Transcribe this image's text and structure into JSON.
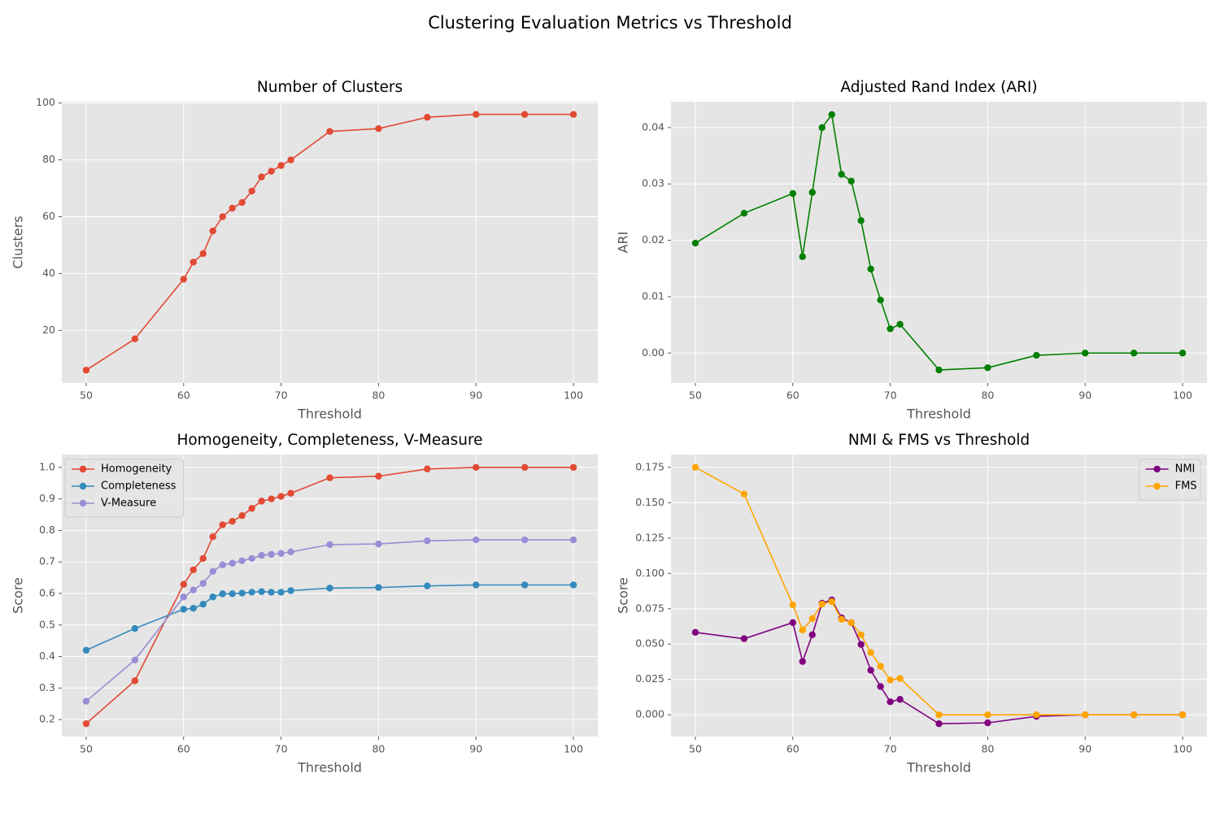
{
  "title": "Clustering Evaluation Metrics vs Threshold",
  "chart_data": [
    {
      "type": "line",
      "title": "Number of Clusters",
      "xlabel": "Threshold",
      "ylabel": "Clusters",
      "x": [
        50,
        55,
        60,
        61,
        62,
        63,
        64,
        65,
        66,
        67,
        68,
        69,
        70,
        71,
        75,
        80,
        85,
        90,
        95,
        100
      ],
      "values": [
        6,
        17,
        38,
        44,
        47,
        55,
        60,
        63,
        65,
        69,
        74,
        76,
        78,
        80,
        90,
        91,
        95,
        96,
        96,
        96
      ],
      "color": "#E24A33",
      "xlim": [
        47.5,
        102.5
      ],
      "xticks": [
        50,
        60,
        70,
        80,
        90,
        100
      ],
      "ylim": [
        1.5,
        100.5
      ],
      "yticks": [
        20,
        40,
        60,
        80,
        100
      ],
      "grid": true
    },
    {
      "type": "line",
      "title": "Adjusted Rand Index (ARI)",
      "xlabel": "Threshold",
      "ylabel": "ARI",
      "x": [
        50,
        55,
        60,
        61,
        62,
        63,
        64,
        65,
        66,
        67,
        68,
        69,
        70,
        71,
        75,
        80,
        85,
        90,
        95,
        100
      ],
      "values": [
        0.0195,
        0.0248,
        0.0283,
        0.0171,
        0.0285,
        0.04,
        0.0423,
        0.0317,
        0.0305,
        0.0235,
        0.0149,
        0.0094,
        0.0043,
        0.0051,
        -0.003,
        -0.0026,
        -0.0004,
        0,
        0,
        0
      ],
      "color": "#008000",
      "xlim": [
        47.5,
        102.5
      ],
      "xticks": [
        50,
        60,
        70,
        80,
        90,
        100
      ],
      "ylim": [
        -0.0053,
        0.0446
      ],
      "yticks": [
        {
          "value": 0,
          "label": "0.00"
        },
        {
          "value": 0.01,
          "label": "0.01"
        },
        {
          "value": 0.02,
          "label": "0.02"
        },
        {
          "value": 0.03,
          "label": "0.03"
        },
        {
          "value": 0.04,
          "label": "0.04"
        }
      ],
      "grid": true
    },
    {
      "type": "line",
      "title": "Homogeneity, Completeness, V-Measure",
      "xlabel": "Threshold",
      "ylabel": "Score",
      "x": [
        50,
        55,
        60,
        61,
        62,
        63,
        64,
        65,
        66,
        67,
        68,
        69,
        70,
        71,
        75,
        80,
        85,
        90,
        95,
        100
      ],
      "series": [
        {
          "name": "Homogeneity",
          "color": "#E24A33",
          "values": [
            0.187,
            0.323,
            0.629,
            0.675,
            0.711,
            0.78,
            0.818,
            0.829,
            0.847,
            0.87,
            0.893,
            0.9,
            0.908,
            0.918,
            0.967,
            0.972,
            0.995,
            1.0,
            1.0,
            1.0
          ]
        },
        {
          "name": "Completeness",
          "color": "#348ABD",
          "values": [
            0.42,
            0.489,
            0.55,
            0.553,
            0.566,
            0.589,
            0.599,
            0.599,
            0.601,
            0.604,
            0.606,
            0.604,
            0.604,
            0.609,
            0.617,
            0.619,
            0.624,
            0.627,
            0.627,
            0.627
          ]
        },
        {
          "name": "V-Measure",
          "color": "#988ED5",
          "values": [
            0.258,
            0.389,
            0.589,
            0.611,
            0.632,
            0.67,
            0.691,
            0.696,
            0.704,
            0.711,
            0.721,
            0.724,
            0.727,
            0.732,
            0.755,
            0.757,
            0.767,
            0.77,
            0.77,
            0.77
          ]
        }
      ],
      "xlim": [
        47.5,
        102.5
      ],
      "xticks": [
        50,
        60,
        70,
        80,
        90,
        100
      ],
      "ylim": [
        0.146,
        1.041
      ],
      "yticks": [
        0.2,
        0.3,
        0.4,
        0.5,
        0.6,
        0.7,
        0.8,
        0.9,
        {
          "value": 1,
          "label": "1.0"
        }
      ],
      "grid": true,
      "legend": "upper left"
    },
    {
      "type": "line",
      "title": "NMI & FMS vs Threshold",
      "xlabel": "Threshold",
      "ylabel": "Score",
      "x": [
        50,
        55,
        60,
        61,
        62,
        63,
        64,
        65,
        66,
        67,
        68,
        69,
        70,
        71,
        75,
        80,
        85,
        90,
        95,
        100
      ],
      "series": [
        {
          "name": "NMI",
          "color": "#800080",
          "values": [
            0.0583,
            0.0538,
            0.0652,
            0.0377,
            0.0566,
            0.0789,
            0.0812,
            0.0686,
            0.0652,
            0.0498,
            0.0315,
            0.02,
            0.0092,
            0.0109,
            -0.0063,
            -0.0057,
            -0.0011,
            0,
            0,
            0
          ]
        },
        {
          "name": "FMS",
          "color": "#FFA500",
          "values": [
            0.175,
            0.1561,
            0.0778,
            0.06,
            0.0681,
            0.0783,
            0.0801,
            0.0675,
            0.0652,
            0.0566,
            0.044,
            0.0343,
            0.0246,
            0.0257,
            0,
            0,
            0,
            0,
            0,
            0
          ]
        }
      ],
      "xlim": [
        47.5,
        102.5
      ],
      "xticks": [
        50,
        60,
        70,
        80,
        90,
        100
      ],
      "ylim": [
        -0.0154,
        0.1841
      ],
      "yticks": [
        {
          "value": 0,
          "label": "0.000"
        },
        {
          "value": 0.025,
          "label": "0.025"
        },
        {
          "value": 0.05,
          "label": "0.050"
        },
        {
          "value": 0.075,
          "label": "0.075"
        },
        {
          "value": 0.1,
          "label": "0.100"
        },
        {
          "value": 0.125,
          "label": "0.125"
        },
        {
          "value": 0.15,
          "label": "0.150"
        },
        {
          "value": 0.175,
          "label": "0.175"
        }
      ],
      "grid": true,
      "legend": "upper right"
    }
  ]
}
